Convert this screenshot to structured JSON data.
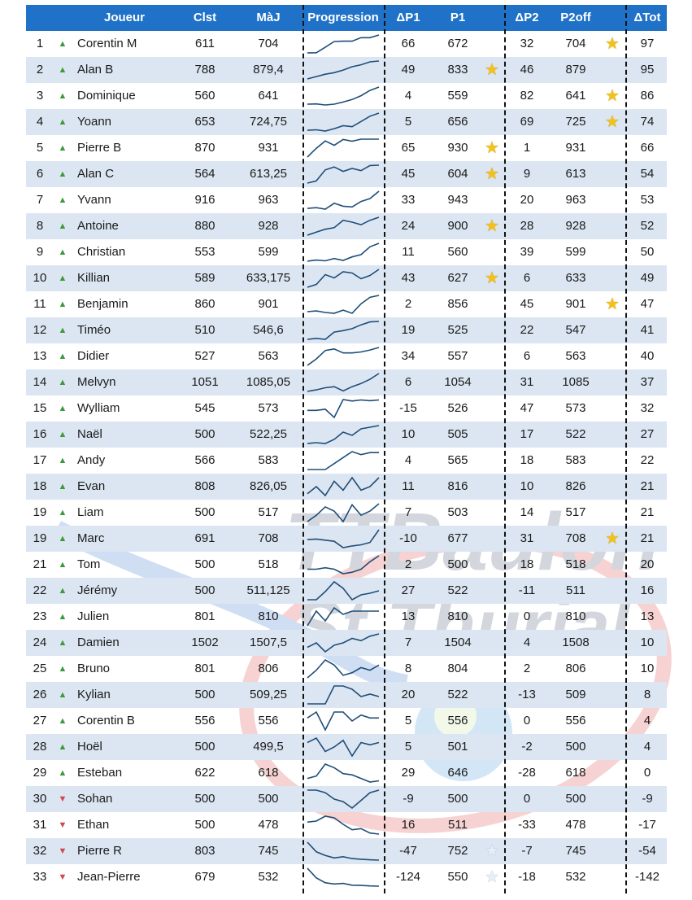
{
  "headers": {
    "joueur": "Joueur",
    "clst": "Clst",
    "maj": "MàJ",
    "progression": "Progression",
    "dp1": "ΔP1",
    "p1": "P1",
    "dp2": "ΔP2",
    "p2off": "P2off",
    "dtot": "ΔTot"
  },
  "watermark": {
    "line1": "TTBaulon",
    "line2": "St Thurial"
  },
  "colors": {
    "header_bg": "#1f72c7",
    "alt_row": "#dce6f2",
    "up_arrow": "#3c9a3c",
    "down_arrow": "#d04a4a",
    "sparkline": "#1f4e79",
    "star": "#f2c21b"
  },
  "rows": [
    {
      "rank": "1",
      "arrow": "up",
      "name": "Corentin M",
      "clst": "611",
      "maj": "704",
      "dp1": "66",
      "p1": "672",
      "star1": "",
      "dp2": "32",
      "p2": "704",
      "star2": "gold",
      "dtot": "97",
      "spark": [
        611,
        612,
        640,
        670,
        672,
        672,
        690,
        690,
        704
      ]
    },
    {
      "rank": "2",
      "arrow": "up",
      "name": "Alan B",
      "clst": "788",
      "maj": "879,4",
      "dp1": "49",
      "p1": "833",
      "star1": "gold",
      "dp2": "46",
      "p2": "879",
      "star2": "",
      "dtot": "95",
      "spark": [
        788,
        800,
        812,
        820,
        833,
        850,
        860,
        875,
        879
      ]
    },
    {
      "rank": "3",
      "arrow": "up",
      "name": "Dominique",
      "clst": "560",
      "maj": "641",
      "dp1": "4",
      "p1": "559",
      "star1": "",
      "dp2": "82",
      "p2": "641",
      "star2": "gold",
      "dtot": "86",
      "spark": [
        560,
        561,
        556,
        560,
        570,
        582,
        600,
        625,
        641
      ]
    },
    {
      "rank": "4",
      "arrow": "up",
      "name": "Yoann",
      "clst": "653",
      "maj": "724,75",
      "dp1": "5",
      "p1": "656",
      "star1": "",
      "dp2": "69",
      "p2": "725",
      "star2": "gold",
      "dtot": "74",
      "spark": [
        653,
        655,
        650,
        660,
        672,
        668,
        690,
        712,
        725
      ]
    },
    {
      "rank": "5",
      "arrow": "up",
      "name": "Pierre B",
      "clst": "870",
      "maj": "931",
      "dp1": "65",
      "p1": "930",
      "star1": "gold",
      "dp2": "1",
      "p2": "931",
      "star2": "",
      "dtot": "66",
      "spark": [
        870,
        900,
        925,
        910,
        930,
        924,
        931,
        931,
        931
      ]
    },
    {
      "rank": "6",
      "arrow": "up",
      "name": "Alan C",
      "clst": "564",
      "maj": "613,25",
      "dp1": "45",
      "p1": "604",
      "star1": "gold",
      "dp2": "9",
      "p2": "613",
      "star2": "",
      "dtot": "54",
      "spark": [
        564,
        570,
        600,
        608,
        596,
        604,
        598,
        612,
        613
      ]
    },
    {
      "rank": "7",
      "arrow": "up",
      "name": "Yvann",
      "clst": "916",
      "maj": "963",
      "dp1": "33",
      "p1": "943",
      "star1": "",
      "dp2": "20",
      "p2": "963",
      "star2": "",
      "dtot": "53",
      "spark": [
        916,
        918,
        914,
        930,
        922,
        920,
        935,
        943,
        963
      ]
    },
    {
      "rank": "8",
      "arrow": "up",
      "name": "Antoine",
      "clst": "880",
      "maj": "928",
      "dp1": "24",
      "p1": "900",
      "star1": "gold",
      "dp2": "28",
      "p2": "928",
      "star2": "",
      "dtot": "52",
      "spark": [
        880,
        888,
        896,
        900,
        920,
        915,
        908,
        920,
        928
      ]
    },
    {
      "rank": "9",
      "arrow": "up",
      "name": "Christian",
      "clst": "553",
      "maj": "599",
      "dp1": "11",
      "p1": "560",
      "star1": "",
      "dp2": "39",
      "p2": "599",
      "star2": "",
      "dtot": "50",
      "spark": [
        553,
        556,
        554,
        560,
        555,
        564,
        570,
        590,
        599
      ]
    },
    {
      "rank": "10",
      "arrow": "up",
      "name": "Killian",
      "clst": "589",
      "maj": "633,175",
      "dp1": "43",
      "p1": "627",
      "star1": "gold",
      "dp2": "6",
      "p2": "633",
      "star2": "",
      "dtot": "49",
      "spark": [
        589,
        596,
        620,
        612,
        627,
        624,
        610,
        618,
        633
      ]
    },
    {
      "rank": "11",
      "arrow": "up",
      "name": "Benjamin",
      "clst": "860",
      "maj": "901",
      "dp1": "2",
      "p1": "856",
      "star1": "",
      "dp2": "45",
      "p2": "901",
      "star2": "gold",
      "dtot": "47",
      "spark": [
        860,
        862,
        858,
        856,
        864,
        856,
        880,
        896,
        901
      ]
    },
    {
      "rank": "12",
      "arrow": "up",
      "name": "Timéo",
      "clst": "510",
      "maj": "546,6",
      "dp1": "19",
      "p1": "525",
      "star1": "",
      "dp2": "22",
      "p2": "547",
      "star2": "",
      "dtot": "41",
      "spark": [
        510,
        512,
        510,
        525,
        528,
        532,
        540,
        546,
        547
      ]
    },
    {
      "rank": "13",
      "arrow": "up",
      "name": "Didier",
      "clst": "527",
      "maj": "563",
      "dp1": "34",
      "p1": "557",
      "star1": "",
      "dp2": "6",
      "p2": "563",
      "star2": "",
      "dtot": "40",
      "spark": [
        527,
        540,
        557,
        560,
        552,
        552,
        554,
        558,
        563
      ]
    },
    {
      "rank": "14",
      "arrow": "up",
      "name": "Melvyn",
      "clst": "1051",
      "maj": "1085,05",
      "dp1": "6",
      "p1": "1054",
      "star1": "",
      "dp2": "31",
      "p2": "1085",
      "star2": "",
      "dtot": "37",
      "spark": [
        1051,
        1054,
        1058,
        1060,
        1052,
        1060,
        1066,
        1074,
        1085
      ]
    },
    {
      "rank": "15",
      "arrow": "up",
      "name": "Wylliam",
      "clst": "545",
      "maj": "573",
      "dp1": "-15",
      "p1": "526",
      "star1": "",
      "dp2": "47",
      "p2": "573",
      "star2": "",
      "dtot": "32",
      "spark": [
        545,
        545,
        548,
        526,
        574,
        570,
        573,
        571,
        573
      ]
    },
    {
      "rank": "16",
      "arrow": "up",
      "name": "Naël",
      "clst": "500",
      "maj": "522,25",
      "dp1": "10",
      "p1": "505",
      "star1": "",
      "dp2": "17",
      "p2": "522",
      "star2": "",
      "dtot": "27",
      "spark": [
        500,
        501,
        500,
        505,
        514,
        510,
        518,
        520,
        522
      ]
    },
    {
      "rank": "17",
      "arrow": "up",
      "name": "Andy",
      "clst": "566",
      "maj": "583",
      "dp1": "4",
      "p1": "565",
      "star1": "",
      "dp2": "18",
      "p2": "583",
      "star2": "",
      "dtot": "22",
      "spark": [
        566,
        566,
        566,
        572,
        578,
        584,
        581,
        583,
        583
      ]
    },
    {
      "rank": "18",
      "arrow": "up",
      "name": "Evan",
      "clst": "808",
      "maj": "826,05",
      "dp1": "11",
      "p1": "816",
      "star1": "",
      "dp2": "10",
      "p2": "826",
      "star2": "",
      "dtot": "21",
      "spark": [
        808,
        816,
        806,
        822,
        812,
        826,
        812,
        816,
        826
      ]
    },
    {
      "rank": "19",
      "arrow": "up",
      "name": "Liam",
      "clst": "500",
      "maj": "517",
      "dp1": "7",
      "p1": "503",
      "star1": "",
      "dp2": "14",
      "p2": "517",
      "star2": "",
      "dtot": "21",
      "spark": [
        500,
        506,
        514,
        510,
        500,
        516,
        506,
        510,
        517
      ]
    },
    {
      "rank": "19",
      "arrow": "up",
      "name": "Marc",
      "clst": "691",
      "maj": "708",
      "dp1": "-10",
      "p1": "677",
      "star1": "",
      "dp2": "31",
      "p2": "708",
      "star2": "gold",
      "dtot": "21",
      "spark": [
        691,
        692,
        690,
        688,
        677,
        680,
        682,
        686,
        708
      ]
    },
    {
      "rank": "21",
      "arrow": "up",
      "name": "Tom",
      "clst": "500",
      "maj": "518",
      "dp1": "2",
      "p1": "500",
      "star1": "",
      "dp2": "18",
      "p2": "518",
      "star2": "",
      "dtot": "20",
      "spark": [
        500,
        500,
        502,
        500,
        494,
        496,
        500,
        510,
        518
      ]
    },
    {
      "rank": "22",
      "arrow": "up",
      "name": "Jérémy",
      "clst": "500",
      "maj": "511,125",
      "dp1": "27",
      "p1": "522",
      "star1": "",
      "dp2": "-11",
      "p2": "511",
      "star2": "",
      "dtot": "16",
      "spark": [
        500,
        500,
        510,
        522,
        514,
        500,
        506,
        508,
        511
      ]
    },
    {
      "rank": "23",
      "arrow": "up",
      "name": "Julien",
      "clst": "801",
      "maj": "810",
      "dp1": "13",
      "p1": "810",
      "star1": "",
      "dp2": "0",
      "p2": "810",
      "star2": "",
      "dtot": "13",
      "spark": [
        801,
        810,
        804,
        812,
        808,
        810,
        810,
        810,
        810
      ]
    },
    {
      "rank": "24",
      "arrow": "up",
      "name": "Damien",
      "clst": "1502",
      "maj": "1507,5",
      "dp1": "7",
      "p1": "1504",
      "star1": "",
      "dp2": "4",
      "p2": "1508",
      "star2": "",
      "dtot": "10",
      "spark": [
        1502,
        1504,
        1500,
        1503,
        1504,
        1506,
        1505,
        1507,
        1508
      ]
    },
    {
      "rank": "25",
      "arrow": "up",
      "name": "Bruno",
      "clst": "801",
      "maj": "806",
      "dp1": "8",
      "p1": "804",
      "star1": "",
      "dp2": "2",
      "p2": "806",
      "star2": "",
      "dtot": "10",
      "spark": [
        801,
        804,
        808,
        806,
        802,
        803,
        805,
        804,
        806
      ]
    },
    {
      "rank": "26",
      "arrow": "up",
      "name": "Kylian",
      "clst": "500",
      "maj": "509,25",
      "dp1": "20",
      "p1": "522",
      "star1": "",
      "dp2": "-13",
      "p2": "509",
      "star2": "",
      "dtot": "8",
      "spark": [
        500,
        500,
        500,
        522,
        522,
        518,
        509,
        512,
        509
      ]
    },
    {
      "rank": "27",
      "arrow": "up",
      "name": "Corentin B",
      "clst": "556",
      "maj": "556",
      "dp1": "5",
      "p1": "556",
      "star1": "",
      "dp2": "0",
      "p2": "556",
      "star2": "",
      "dtot": "4",
      "spark": [
        556,
        560,
        548,
        560,
        560,
        554,
        558,
        556,
        556
      ]
    },
    {
      "rank": "28",
      "arrow": "up",
      "name": "Hoël",
      "clst": "500",
      "maj": "499,5",
      "dp1": "5",
      "p1": "501",
      "star1": "",
      "dp2": "-2",
      "p2": "500",
      "star2": "",
      "dtot": "4",
      "spark": [
        500,
        502,
        496,
        498,
        501,
        494,
        500,
        499,
        500
      ]
    },
    {
      "rank": "29",
      "arrow": "up",
      "name": "Esteban",
      "clst": "622",
      "maj": "618",
      "dp1": "29",
      "p1": "646",
      "star1": "",
      "dp2": "-28",
      "p2": "618",
      "star2": "",
      "dtot": "0",
      "spark": [
        622,
        626,
        646,
        640,
        630,
        628,
        622,
        616,
        618
      ]
    },
    {
      "rank": "30",
      "arrow": "down",
      "name": "Sohan",
      "clst": "500",
      "maj": "500",
      "dp1": "-9",
      "p1": "500",
      "star1": "",
      "dp2": "0",
      "p2": "500",
      "star2": "",
      "dtot": "-9",
      "spark": [
        500,
        500,
        498,
        493,
        491,
        486,
        492,
        498,
        500
      ]
    },
    {
      "rank": "31",
      "arrow": "down",
      "name": "Ethan",
      "clst": "500",
      "maj": "478",
      "dp1": "16",
      "p1": "511",
      "star1": "",
      "dp2": "-33",
      "p2": "478",
      "star2": "",
      "dtot": "-17",
      "spark": [
        500,
        502,
        511,
        508,
        496,
        486,
        488,
        480,
        478
      ]
    },
    {
      "rank": "32",
      "arrow": "down",
      "name": "Pierre R",
      "clst": "803",
      "maj": "745",
      "dp1": "-47",
      "p1": "752",
      "star1": "empty",
      "dp2": "-7",
      "p2": "745",
      "star2": "",
      "dtot": "-54",
      "spark": [
        803,
        772,
        760,
        752,
        756,
        750,
        748,
        746,
        745
      ]
    },
    {
      "rank": "33",
      "arrow": "down",
      "name": "Jean-Pierre",
      "clst": "679",
      "maj": "532",
      "dp1": "-124",
      "p1": "550",
      "star1": "empty",
      "dp2": "-18",
      "p2": "532",
      "star2": "",
      "dtot": "-142",
      "spark": [
        679,
        600,
        560,
        550,
        555,
        540,
        538,
        534,
        532
      ]
    }
  ]
}
